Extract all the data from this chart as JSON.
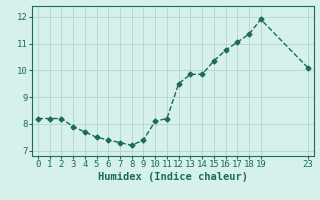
{
  "x": [
    0,
    1,
    2,
    3,
    4,
    5,
    6,
    7,
    8,
    9,
    10,
    11,
    12,
    13,
    14,
    15,
    16,
    17,
    18,
    19,
    23
  ],
  "y": [
    8.2,
    8.2,
    8.2,
    7.9,
    7.7,
    7.5,
    7.4,
    7.3,
    7.2,
    7.4,
    8.1,
    8.2,
    9.5,
    9.85,
    9.85,
    10.35,
    10.75,
    11.05,
    11.35,
    11.9,
    10.1
  ],
  "line_color": "#1a6b5a",
  "marker": "D",
  "marker_size": 2.5,
  "bg_color": "#d6f0ec",
  "grid_color": "#b8d8d4",
  "xlabel": "Humidex (Indice chaleur)",
  "xlabel_fontsize": 7.5,
  "ylim": [
    6.8,
    12.4
  ],
  "xlim": [
    -0.5,
    23.5
  ],
  "yticks": [
    7,
    8,
    9,
    10,
    11,
    12
  ],
  "xticks": [
    0,
    1,
    2,
    3,
    4,
    5,
    6,
    7,
    8,
    9,
    10,
    11,
    12,
    13,
    14,
    15,
    16,
    17,
    18,
    19,
    23
  ],
  "tick_fontsize": 6.5,
  "axis_color": "#1a6b5a",
  "line_width": 1.0,
  "figure_bg": "#d6f0ec"
}
